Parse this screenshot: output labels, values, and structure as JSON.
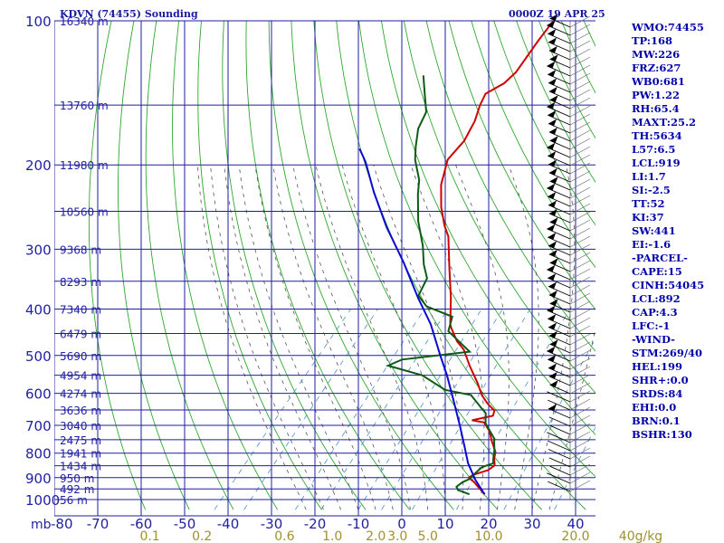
{
  "header": {
    "station": "KDVN (74455) Sounding",
    "time": "0000Z 19 APR 25"
  },
  "stats": [
    "WMO:74455",
    "TP:168",
    "MW:226",
    "FRZ:627",
    "WB0:681",
    "PW:1.22",
    "RH:65.4",
    "MAXT:25.2",
    "TH:5634",
    "L57:6.5",
    "LCL:919",
    "LI:1.7",
    "SI:-2.5",
    "TT:52",
    "KI:37",
    "SW:441",
    "EI:-1.6",
    "-PARCEL-",
    "CAPE:15",
    "CINH:54045",
    "LCL:892",
    "CAP:4.3",
    "LFC:-1",
    "-WIND-",
    "STM:269/40",
    "HEL:199",
    "SHR+:0.0",
    "SRDS:84",
    "EHI:0.0",
    "BRN:0.1",
    "BSHR:130"
  ],
  "colors": {
    "background": "#ffffff",
    "isobar": "#1f1fa0",
    "isotherm": "#1f1fa0",
    "dry_adiabat": "#2fa82f",
    "moist_adiabat": "#555555",
    "mixing_ratio": "#4a90d0",
    "temperature": "#d00000",
    "dewpoint": "#0f5a14",
    "parcel": "#0a0ad0",
    "axis_text": "#1f1fa0",
    "mixing_ratio_text": "#a09030",
    "wind_barb": "#000000"
  },
  "chart_data": {
    "type": "line",
    "title": "KDVN (74455) Sounding",
    "x_unit": "°C",
    "xlim": [
      -80,
      40
    ],
    "ylim": [
      1000,
      100
    ],
    "y_scale": "log",
    "x_corner_label": "mb",
    "x_ticks": [
      -80,
      -70,
      -60,
      -50,
      -40,
      -30,
      -20,
      -10,
      0,
      10,
      20,
      30,
      40
    ],
    "pressure_ticks": [
      100,
      200,
      300,
      400,
      500,
      600,
      700,
      800,
      900,
      1000
    ],
    "height_labels": [
      {
        "p": 100,
        "label": "16340 m"
      },
      {
        "p": 150,
        "label": "13760 m"
      },
      {
        "p": 200,
        "label": "11980 m"
      },
      {
        "p": 250,
        "label": "10560 m"
      },
      {
        "p": 300,
        "label": "9368 m"
      },
      {
        "p": 350,
        "label": "8293 m"
      },
      {
        "p": 400,
        "label": "7340 m"
      },
      {
        "p": 450,
        "label": "6479 m"
      },
      {
        "p": 500,
        "label": "5690 m"
      },
      {
        "p": 550,
        "label": "4954 m"
      },
      {
        "p": 600,
        "label": "4274 m"
      },
      {
        "p": 650,
        "label": "3636 m"
      },
      {
        "p": 700,
        "label": "3040 m"
      },
      {
        "p": 750,
        "label": "2475 m"
      },
      {
        "p": 800,
        "label": "1941 m"
      },
      {
        "p": 850,
        "label": "1434 m"
      },
      {
        "p": 900,
        "label": "950 m"
      },
      {
        "p": 950,
        "label": "492 m"
      },
      {
        "p": 1000,
        "label": "56 m"
      }
    ],
    "mixing_ratio_labels": [
      "0.1",
      "0.2",
      "0.6",
      "1.0",
      "2.0",
      "3.0",
      "5.0",
      "10.0",
      "20.0",
      "40g/kg"
    ],
    "mixing_ratio_positions": [
      -58,
      -46,
      -27,
      -16,
      -6,
      -1,
      6,
      20,
      40,
      55
    ],
    "series": [
      {
        "name": "temperature",
        "points": [
          [
            -61,
            100
          ],
          [
            -60.5,
            110
          ],
          [
            -59.3,
            128
          ],
          [
            -59.8,
            135
          ],
          [
            -62,
            142
          ],
          [
            -61,
            150
          ],
          [
            -59,
            162
          ],
          [
            -57.5,
            178
          ],
          [
            -57.5,
            195
          ],
          [
            -54,
            220
          ],
          [
            -49.5,
            245
          ],
          [
            -45,
            268
          ],
          [
            -42,
            282
          ],
          [
            -35.2,
            330
          ],
          [
            -29,
            380
          ],
          [
            -24,
            430
          ],
          [
            -23,
            438
          ],
          [
            -19,
            467
          ],
          [
            -15.8,
            486
          ],
          [
            -11,
            527
          ],
          [
            -6,
            570
          ],
          [
            -2.5,
            605
          ],
          [
            0.5,
            630
          ],
          [
            3.5,
            652
          ],
          [
            4.2,
            668
          ],
          [
            0.3,
            683
          ],
          [
            3.5,
            690
          ],
          [
            6.5,
            720
          ],
          [
            9,
            755
          ],
          [
            12,
            795
          ],
          [
            13,
            820
          ],
          [
            14.5,
            848
          ],
          [
            14,
            868
          ],
          [
            11.5,
            888
          ],
          [
            11,
            900
          ],
          [
            13,
            918
          ],
          [
            18,
            975
          ]
        ]
      },
      {
        "name": "dewpoint",
        "points": [
          [
            -80,
            130
          ],
          [
            -76,
            142
          ],
          [
            -72,
            155
          ],
          [
            -70.5,
            168
          ],
          [
            -67.5,
            183
          ],
          [
            -65,
            195
          ],
          [
            -60,
            215
          ],
          [
            -57.5,
            230
          ],
          [
            -52,
            262
          ],
          [
            -46,
            295
          ],
          [
            -42,
            323
          ],
          [
            -38.5,
            345
          ],
          [
            -37,
            375
          ],
          [
            -33,
            395
          ],
          [
            -25,
            415
          ],
          [
            -23,
            445
          ],
          [
            -14,
            491
          ],
          [
            -28,
            510
          ],
          [
            -30,
            525
          ],
          [
            -20.2,
            550
          ],
          [
            -12,
            590
          ],
          [
            -5,
            605
          ],
          [
            -0.5,
            640
          ],
          [
            2,
            660
          ],
          [
            4,
            693
          ],
          [
            9,
            745
          ],
          [
            11.5,
            790
          ],
          [
            12.8,
            820
          ],
          [
            13.8,
            840
          ],
          [
            12,
            855
          ],
          [
            11.5,
            890
          ],
          [
            11.5,
            905
          ],
          [
            10.5,
            920
          ],
          [
            10,
            940
          ],
          [
            11,
            955
          ],
          [
            14.5,
            975
          ]
        ]
      },
      {
        "name": "parcel",
        "points": [
          [
            18,
            975
          ],
          [
            13,
            910
          ],
          [
            8,
            840
          ],
          [
            3.5,
            770
          ],
          [
            -1.5,
            700
          ],
          [
            -8,
            620
          ],
          [
            -14.5,
            550
          ],
          [
            -20,
            500
          ],
          [
            -28.5,
            430
          ],
          [
            -36.5,
            380
          ],
          [
            -47,
            320
          ],
          [
            -58,
            270
          ],
          [
            -68,
            228
          ],
          [
            -76,
            197
          ],
          [
            -80,
            185
          ]
        ]
      }
    ],
    "grid": true,
    "legend": "none"
  }
}
